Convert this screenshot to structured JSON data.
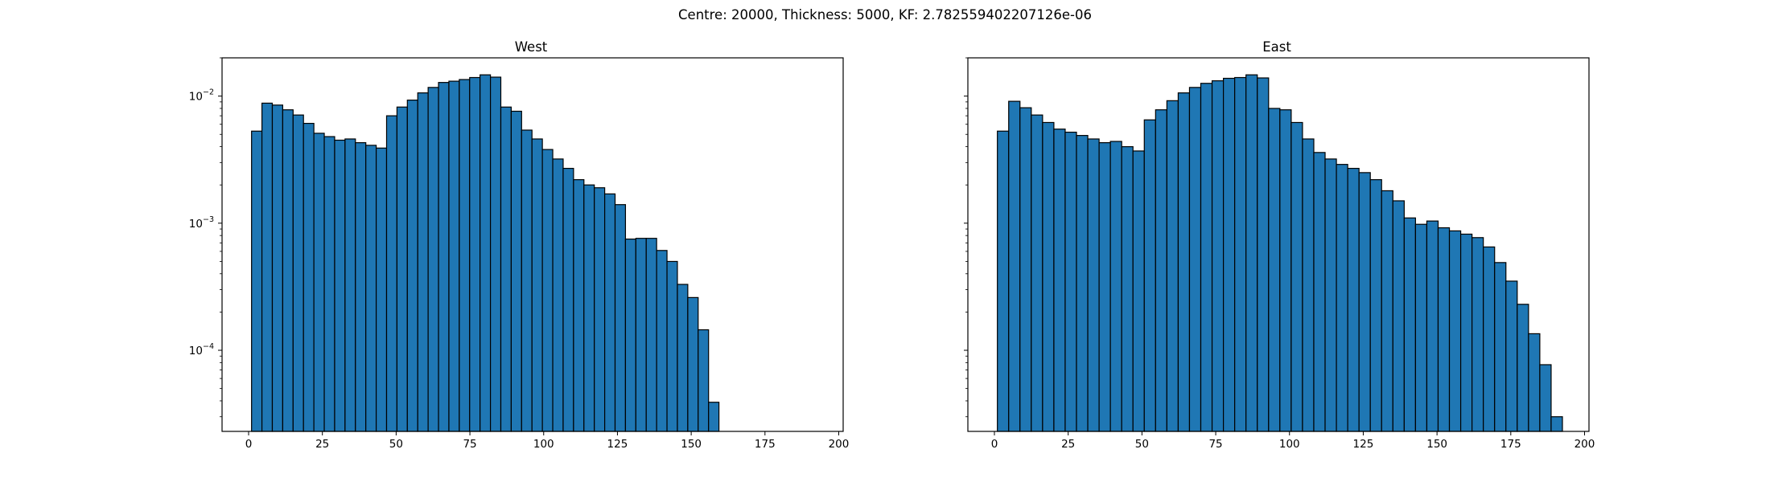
{
  "figure": {
    "suptitle": "Centre: 20000, Thickness: 5000, KF: 2.782559402207126e-06"
  },
  "chart_data": [
    {
      "type": "bar",
      "title": "West",
      "xlabel": "",
      "ylabel": "",
      "yscale": "log",
      "ylim": [
        2.3e-05,
        0.02
      ],
      "xlim": [
        -9,
        201.5
      ],
      "xticks": [
        0,
        25,
        50,
        75,
        100,
        125,
        150,
        175,
        200
      ],
      "yticks": [
        {
          "value": 0.0001,
          "base": "10",
          "exp": "−4"
        },
        {
          "value": 0.001,
          "base": "10",
          "exp": "−3"
        },
        {
          "value": 0.01,
          "base": "10",
          "exp": "−2"
        }
      ],
      "grid": false,
      "legend": "none",
      "bar_color": "#1f77b4",
      "edge_color": "#000000",
      "bin_start": 1,
      "bin_width": 3.52,
      "values": [
        0.0053,
        0.0088,
        0.0085,
        0.0078,
        0.0071,
        0.0061,
        0.0051,
        0.0048,
        0.0045,
        0.0046,
        0.0043,
        0.0041,
        0.0039,
        0.007,
        0.0082,
        0.0093,
        0.0106,
        0.0117,
        0.0128,
        0.0131,
        0.0135,
        0.014,
        0.0147,
        0.0141,
        0.0082,
        0.0076,
        0.0054,
        0.0046,
        0.0038,
        0.0032,
        0.0027,
        0.0022,
        0.002,
        0.0019,
        0.0017,
        0.0014,
        0.00075,
        0.00076,
        0.00076,
        0.00061,
        0.0005,
        0.00033,
        0.00026,
        0.000145,
        3.9e-05
      ]
    },
    {
      "type": "bar",
      "title": "East",
      "xlabel": "",
      "ylabel": "",
      "yscale": "log",
      "ylim": [
        2.3e-05,
        0.02
      ],
      "xlim": [
        -9,
        201.5
      ],
      "xticks": [
        0,
        25,
        50,
        75,
        100,
        125,
        150,
        175,
        200
      ],
      "yticks": [
        {
          "value": 0.0001,
          "base": "",
          "exp": ""
        },
        {
          "value": 0.001,
          "base": "",
          "exp": ""
        },
        {
          "value": 0.01,
          "base": "",
          "exp": ""
        }
      ],
      "grid": false,
      "legend": "none",
      "bar_color": "#1f77b4",
      "edge_color": "#000000",
      "bin_start": 1,
      "bin_width": 3.83,
      "values": [
        0.0053,
        0.0091,
        0.0081,
        0.0071,
        0.0062,
        0.0055,
        0.0052,
        0.0049,
        0.0046,
        0.0043,
        0.0044,
        0.004,
        0.0037,
        0.0065,
        0.0078,
        0.0092,
        0.0106,
        0.0117,
        0.0126,
        0.0132,
        0.0138,
        0.014,
        0.0147,
        0.0139,
        0.008,
        0.0078,
        0.0062,
        0.0046,
        0.0036,
        0.0032,
        0.0029,
        0.0027,
        0.0025,
        0.0022,
        0.0018,
        0.0015,
        0.0011,
        0.00098,
        0.00104,
        0.00092,
        0.00087,
        0.00082,
        0.00077,
        0.00065,
        0.00049,
        0.00035,
        0.00023,
        0.000135,
        7.7e-05,
        3e-05
      ]
    }
  ]
}
